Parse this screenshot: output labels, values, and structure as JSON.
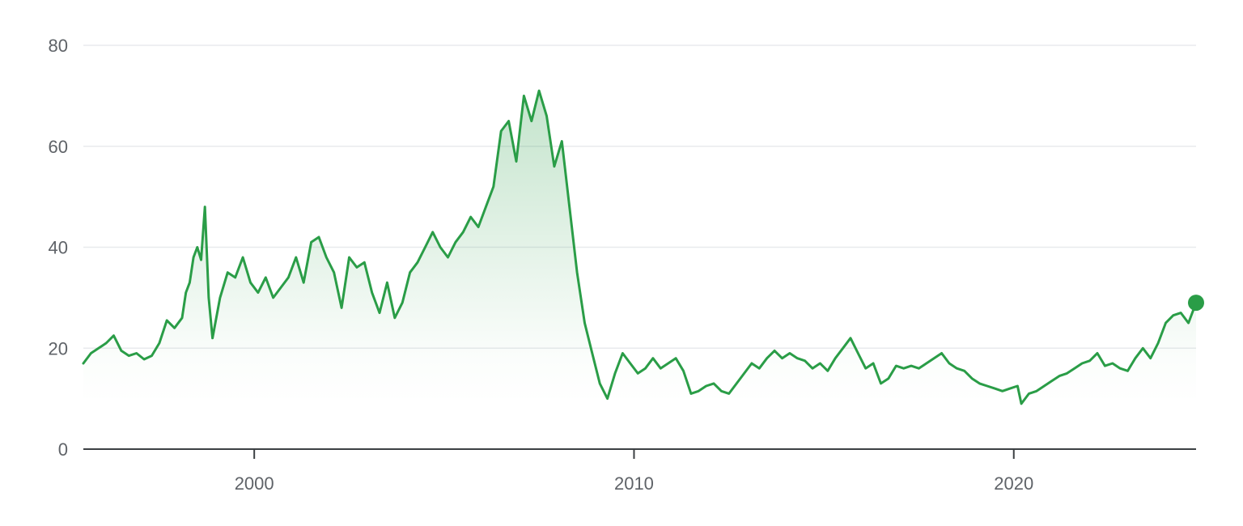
{
  "chart_data": {
    "type": "line",
    "title": "",
    "xlabel": "",
    "ylabel": "",
    "xlim": [
      1995.5,
      2024.8
    ],
    "ylim": [
      0,
      80
    ],
    "y_ticks": [
      0,
      20,
      40,
      60,
      80
    ],
    "y_tick_labels": [
      "0",
      "20",
      "40",
      "60",
      "80"
    ],
    "x_ticks": [
      2000,
      2010,
      2020
    ],
    "x_tick_labels": [
      "2000",
      "2010",
      "2020"
    ],
    "grid": true,
    "legend": "none",
    "colors": {
      "line": "#2a9d47",
      "fill_top": "#2a9d47",
      "grid": "#e8eaed",
      "axis": "#3c4043",
      "tick_text": "#5f6368"
    },
    "series": [
      {
        "x": [
          1995.5,
          1995.7,
          1995.9,
          1996.1,
          1996.3,
          1996.5,
          1996.7,
          1996.9,
          1997.1,
          1997.3,
          1997.5,
          1997.7,
          1997.9,
          1998.1,
          1998.2,
          1998.3,
          1998.4,
          1998.5,
          1998.6,
          1998.7,
          1998.8,
          1998.9,
          1999.1,
          1999.3,
          1999.5,
          1999.7,
          1999.9,
          2000.1,
          2000.3,
          2000.5,
          2000.7,
          2000.9,
          2001.1,
          2001.3,
          2001.5,
          2001.7,
          2001.9,
          2002.1,
          2002.3,
          2002.5,
          2002.7,
          2002.9,
          2003.1,
          2003.3,
          2003.5,
          2003.7,
          2003.9,
          2004.1,
          2004.3,
          2004.5,
          2004.7,
          2004.9,
          2005.1,
          2005.3,
          2005.5,
          2005.7,
          2005.9,
          2006.1,
          2006.3,
          2006.5,
          2006.7,
          2006.9,
          2007.1,
          2007.3,
          2007.5,
          2007.7,
          2007.9,
          2008.1,
          2008.3,
          2008.5,
          2008.7,
          2008.9,
          2009.1,
          2009.3,
          2009.5,
          2009.7,
          2009.9,
          2010.1,
          2010.3,
          2010.5,
          2010.7,
          2010.9,
          2011.1,
          2011.3,
          2011.5,
          2011.7,
          2011.9,
          2012.1,
          2012.3,
          2012.5,
          2012.7,
          2012.9,
          2013.1,
          2013.3,
          2013.5,
          2013.7,
          2013.9,
          2014.1,
          2014.3,
          2014.5,
          2014.7,
          2014.9,
          2015.1,
          2015.3,
          2015.5,
          2015.7,
          2015.9,
          2016.1,
          2016.3,
          2016.5,
          2016.7,
          2016.9,
          2017.1,
          2017.3,
          2017.5,
          2017.7,
          2017.9,
          2018.1,
          2018.3,
          2018.5,
          2018.7,
          2018.9,
          2019.1,
          2019.3,
          2019.5,
          2019.7,
          2019.9,
          2020.1,
          2020.2,
          2020.4,
          2020.6,
          2020.8,
          2021.0,
          2021.2,
          2021.4,
          2021.6,
          2021.8,
          2022.0,
          2022.2,
          2022.4,
          2022.6,
          2022.8,
          2023.0,
          2023.2,
          2023.4,
          2023.6,
          2023.8,
          2024.0,
          2024.2,
          2024.4,
          2024.6,
          2024.8
        ],
        "y": [
          17.0,
          19.0,
          20.0,
          21.0,
          22.5,
          19.5,
          18.5,
          19.0,
          17.8,
          18.5,
          21.0,
          25.5,
          24.0,
          26.0,
          31.0,
          33.0,
          38.0,
          40.0,
          37.5,
          48.0,
          30.0,
          22.0,
          30.0,
          35.0,
          34.0,
          38.0,
          33.0,
          31.0,
          34.0,
          30.0,
          32.0,
          34.0,
          38.0,
          33.0,
          41.0,
          42.0,
          38.0,
          35.0,
          28.0,
          38.0,
          36.0,
          37.0,
          31.0,
          27.0,
          33.0,
          26.0,
          29.0,
          35.0,
          37.0,
          40.0,
          43.0,
          40.0,
          38.0,
          41.0,
          43.0,
          46.0,
          44.0,
          48.0,
          52.0,
          63.0,
          65.0,
          57.0,
          70.0,
          65.0,
          71.0,
          66.0,
          56.0,
          61.0,
          48.0,
          35.0,
          25.0,
          19.0,
          13.0,
          10.0,
          15.0,
          19.0,
          17.0,
          15.0,
          16.0,
          18.0,
          16.0,
          17.0,
          18.0,
          15.5,
          11.0,
          11.5,
          12.5,
          13.0,
          11.5,
          11.0,
          13.0,
          15.0,
          17.0,
          16.0,
          18.0,
          19.5,
          18.0,
          19.0,
          18.0,
          17.5,
          16.0,
          17.0,
          15.5,
          18.0,
          20.0,
          22.0,
          19.0,
          16.0,
          17.0,
          13.0,
          14.0,
          16.5,
          16.0,
          16.5,
          16.0,
          17.0,
          18.0,
          19.0,
          17.0,
          16.0,
          15.5,
          14.0,
          13.0,
          12.5,
          12.0,
          11.5,
          12.0,
          12.5,
          9.0,
          11.0,
          11.5,
          12.5,
          13.5,
          14.5,
          15.0,
          16.0,
          17.0,
          17.5,
          19.0,
          16.5,
          17.0,
          16.0,
          15.5,
          18.0,
          20.0,
          18.0,
          21.0,
          25.0,
          26.5,
          27.0,
          25.0,
          29.0
        ]
      }
    ]
  }
}
